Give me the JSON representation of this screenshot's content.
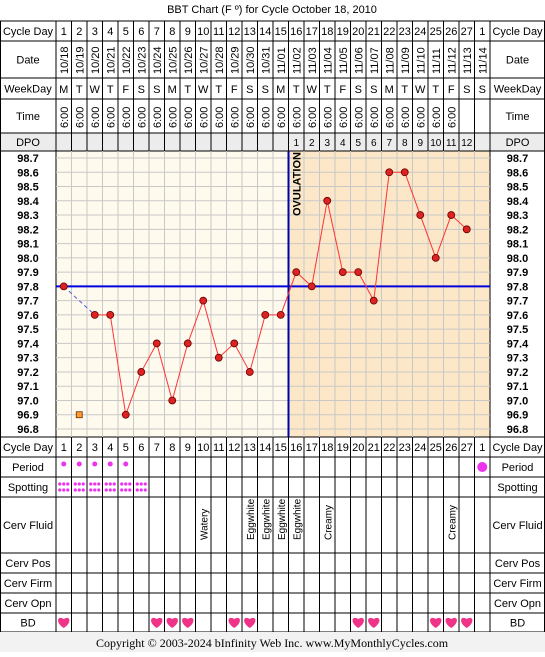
{
  "title": "BBT Chart (F º) for Cycle October 18, 2010",
  "footer": "Copyright © 2003-2024 bInfinity Web Inc.     www.MyMonthlyCycles.com",
  "row_labels": {
    "cycle_day": "Cycle Day",
    "date": "Date",
    "weekday": "WeekDay",
    "time": "Time",
    "dpo": "DPO",
    "period": "Period",
    "spotting": "Spotting",
    "cerv_fluid": "Cerv Fluid",
    "cerv_pos": "Cerv Pos",
    "cerv_firm": "Cerv Firm",
    "cerv_opn": "Cerv Opn",
    "bd": "BD"
  },
  "cycle_days": [
    "1",
    "2",
    "3",
    "4",
    "5",
    "6",
    "7",
    "8",
    "9",
    "10",
    "11",
    "12",
    "13",
    "14",
    "15",
    "16",
    "17",
    "18",
    "19",
    "20",
    "21",
    "22",
    "23",
    "24",
    "25",
    "26",
    "27",
    "1"
  ],
  "dates": [
    "10/18",
    "10/19",
    "10/20",
    "10/21",
    "10/22",
    "10/23",
    "10/24",
    "10/25",
    "10/26",
    "10/27",
    "10/28",
    "10/29",
    "10/30",
    "10/31",
    "11/01",
    "11/02",
    "11/03",
    "11/04",
    "11/05",
    "11/06",
    "11/07",
    "11/08",
    "11/09",
    "11/10",
    "11/11",
    "11/12",
    "11/13",
    "11/14"
  ],
  "weekdays": [
    "M",
    "T",
    "W",
    "T",
    "F",
    "S",
    "S",
    "M",
    "T",
    "W",
    "T",
    "F",
    "S",
    "S",
    "M",
    "T",
    "W",
    "T",
    "F",
    "S",
    "S",
    "M",
    "T",
    "W",
    "T",
    "F",
    "S",
    "S"
  ],
  "times": [
    "6:00",
    "6:00",
    "6:00",
    "6:00",
    "6:00",
    "6:00",
    "6:00",
    "6:00",
    "6:00",
    "6:00",
    "6:00",
    "6:00",
    "6:00",
    "6:00",
    "6:00",
    "6:00",
    "6:00",
    "6:00",
    "6:00",
    "6:00",
    "6:00",
    "6:00",
    "6:00",
    "6:00",
    "6:00",
    "6:00",
    "",
    ""
  ],
  "dpo": [
    "",
    "",
    "",
    "",
    "",
    "",
    "",
    "",
    "",
    "",
    "",
    "",
    "",
    "",
    "",
    "1",
    "2",
    "3",
    "4",
    "5",
    "6",
    "7",
    "8",
    "9",
    "10",
    "11",
    "12",
    ""
  ],
  "temp_ticks": [
    "98.7",
    "98.6",
    "98.5",
    "98.4",
    "98.3",
    "98.2",
    "98.1",
    "98.0",
    "97.9",
    "97.8",
    "97.7",
    "97.6",
    "97.5",
    "97.4",
    "97.3",
    "97.2",
    "97.1",
    "97.0",
    "96.9",
    "96.8"
  ],
  "ovulation_label": "OVULATION",
  "period": [
    "dot",
    "dot",
    "dot",
    "dot",
    "dot",
    "",
    "",
    "",
    "",
    "",
    "",
    "",
    "",
    "",
    "",
    "",
    "",
    "",
    "",
    "",
    "",
    "",
    "",
    "",
    "",
    "",
    "",
    "dot-big"
  ],
  "spotting": [
    "dots",
    "dots",
    "dots",
    "dots",
    "dots",
    "dots",
    "",
    "",
    "",
    "",
    "",
    "",
    "",
    "",
    "",
    "",
    "",
    "",
    "",
    "",
    "",
    "",
    "",
    "",
    "",
    "",
    "",
    ""
  ],
  "cerv_fluid": [
    "",
    "",
    "",
    "",
    "",
    "",
    "",
    "",
    "",
    "Watery",
    "",
    "",
    "Eggwhite",
    "Eggwhite",
    "Eggwhite",
    "Eggwhite",
    "",
    "Creamy",
    "",
    "",
    "",
    "",
    "",
    "",
    "",
    "Creamy",
    "",
    ""
  ],
  "bd": [
    "heart",
    "",
    "",
    "",
    "",
    "",
    "heart",
    "heart",
    "heart",
    "",
    "",
    "heart",
    "heart",
    "",
    "",
    "",
    "",
    "",
    "",
    "heart",
    "heart",
    "",
    "",
    "",
    "heart",
    "heart",
    "heart",
    ""
  ],
  "colors": {
    "grid": "#000000",
    "pre_ovulation_bg": "#fffaee",
    "post_ovulation_bg": "#fce8c8",
    "temp_line": "#ff3333",
    "temp_point": "#dd2222",
    "coverline": "#0000dd",
    "ovulation_line": "#0000aa",
    "period_dot": "#ee33ee",
    "heart": "#ee3388",
    "missing_marker": "#ff9933"
  },
  "chart_data": {
    "type": "line",
    "title": "BBT Chart (F º) for Cycle October 18, 2010",
    "xlabel": "Cycle Day",
    "ylabel": "",
    "x": [
      1,
      2,
      3,
      4,
      5,
      6,
      7,
      8,
      9,
      10,
      11,
      12,
      13,
      14,
      15,
      16,
      17,
      18,
      19,
      20,
      21,
      22,
      23,
      24,
      25,
      26,
      27,
      28
    ],
    "ylim": [
      96.8,
      98.7
    ],
    "series": [
      {
        "values": [
          97.8,
          null,
          97.6,
          97.6,
          96.9,
          97.2,
          97.4,
          97.0,
          97.4,
          97.7,
          97.3,
          97.4,
          97.2,
          97.6,
          97.6,
          97.9,
          97.8,
          98.4,
          97.9,
          97.9,
          97.7,
          98.6,
          98.6,
          98.3,
          98.0,
          98.3,
          98.2,
          null
        ]
      }
    ],
    "coverline": 97.8,
    "ovulation_day": 15,
    "grid": true
  }
}
